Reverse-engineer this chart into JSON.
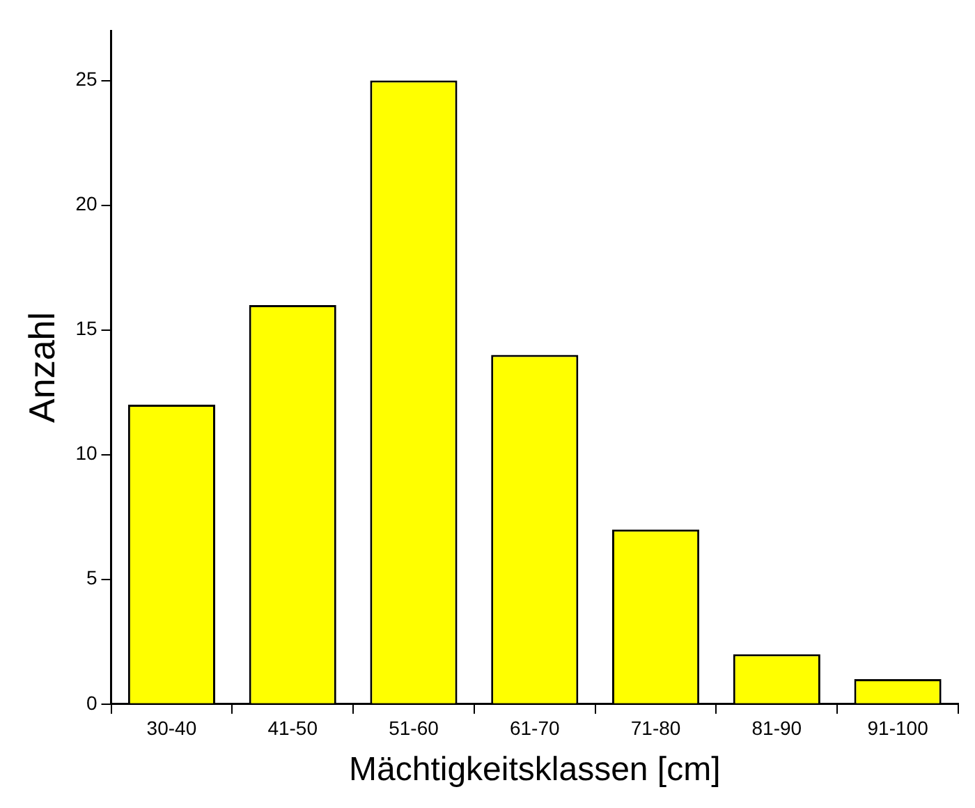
{
  "chart_data": {
    "type": "bar",
    "xlabel": "Mächtigkeitsklassen [cm]",
    "ylabel": "Anzahl",
    "categories": [
      "30-40",
      "41-50",
      "51-60",
      "61-70",
      "71-80",
      "81-90",
      "91-100"
    ],
    "values": [
      12,
      16,
      25,
      14,
      7,
      2,
      1
    ],
    "color": "#ffff00",
    "ylim": [
      0,
      27
    ],
    "yticks": [
      0,
      5,
      10,
      15,
      20,
      25
    ],
    "grid": false,
    "legend": false
  }
}
